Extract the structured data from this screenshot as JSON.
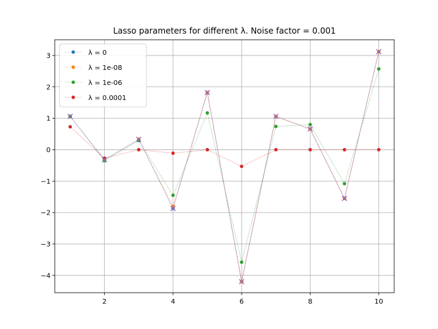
{
  "chart_data": {
    "type": "line",
    "title": "Lasso parameters for different λ. Noise factor = 0.001",
    "xlabel": "",
    "ylabel": "",
    "xlim": [
      0.55,
      10.45
    ],
    "ylim": [
      -4.55,
      3.5
    ],
    "xticks": [
      2,
      4,
      6,
      8,
      10
    ],
    "yticks": [
      -4,
      -3,
      -2,
      -1,
      0,
      1,
      2,
      3
    ],
    "grid": true,
    "legend_position": "top-left",
    "x": [
      1,
      2,
      3,
      4,
      5,
      6,
      7,
      8,
      9,
      10
    ],
    "series": [
      {
        "name": "λ = 0",
        "color": "#1f77b4",
        "values": [
          1.06,
          -0.32,
          0.33,
          -1.87,
          1.82,
          -4.2,
          1.06,
          0.66,
          -1.55,
          3.12
        ]
      },
      {
        "name": "λ = 1e-08",
        "color": "#ff7f0e",
        "values": [
          1.06,
          -0.32,
          0.33,
          -1.8,
          1.82,
          -4.2,
          1.06,
          0.66,
          -1.55,
          3.12
        ]
      },
      {
        "name": "λ = 1e-06",
        "color": "#2ca02c",
        "values": [
          1.06,
          -0.35,
          0.29,
          -1.45,
          1.17,
          -3.58,
          0.74,
          0.8,
          -1.08,
          2.57
        ]
      },
      {
        "name": "λ = 0.0001",
        "color": "#d62728",
        "values": [
          0.73,
          -0.27,
          0.0,
          -0.11,
          0.0,
          -0.53,
          0.0,
          0.0,
          0.0,
          0.0
        ]
      }
    ],
    "true_params": {
      "color": "#9467bd",
      "marker": "x",
      "values": [
        1.06,
        -0.32,
        0.33,
        -1.87,
        1.82,
        -4.2,
        1.06,
        0.66,
        -1.55,
        3.12
      ]
    }
  }
}
